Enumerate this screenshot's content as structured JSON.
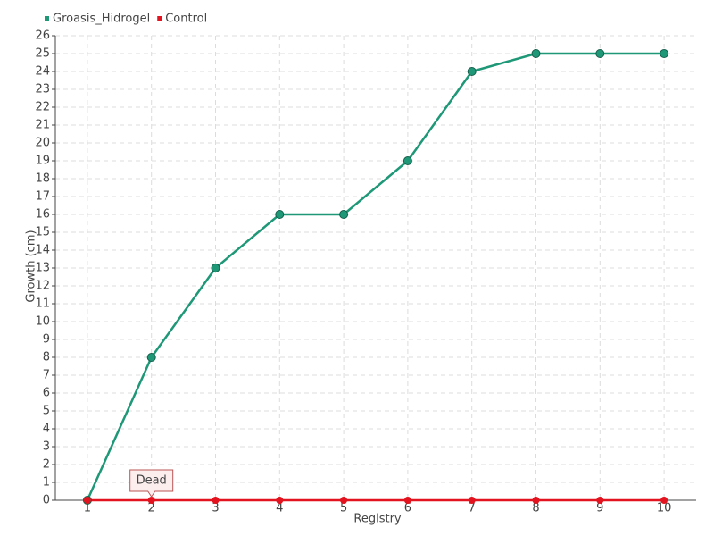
{
  "chart_data": {
    "type": "line",
    "x_label": "Registry",
    "y_label": "Growth (cm)",
    "categories": [
      "1",
      "2",
      "3",
      "4",
      "5",
      "6",
      "7",
      "8",
      "9",
      "10"
    ],
    "series": [
      {
        "name": "Groasis_Hidrogel",
        "color": "#1f9878",
        "values": [
          0,
          8,
          13,
          16,
          16,
          19,
          24,
          25,
          25,
          25
        ]
      },
      {
        "name": "Control",
        "color": "#e3141f",
        "values": [
          0,
          0,
          0,
          0,
          0,
          0,
          0,
          0,
          0,
          0
        ]
      }
    ],
    "ylim": [
      0,
      26
    ],
    "yticks": [
      0,
      1,
      2,
      3,
      4,
      5,
      6,
      7,
      8,
      9,
      10,
      11,
      12,
      13,
      14,
      15,
      16,
      17,
      18,
      19,
      20,
      21,
      22,
      23,
      24,
      25,
      26
    ],
    "grid": true,
    "annotation": {
      "text": "Dead",
      "series": "Control",
      "category": "2"
    }
  }
}
